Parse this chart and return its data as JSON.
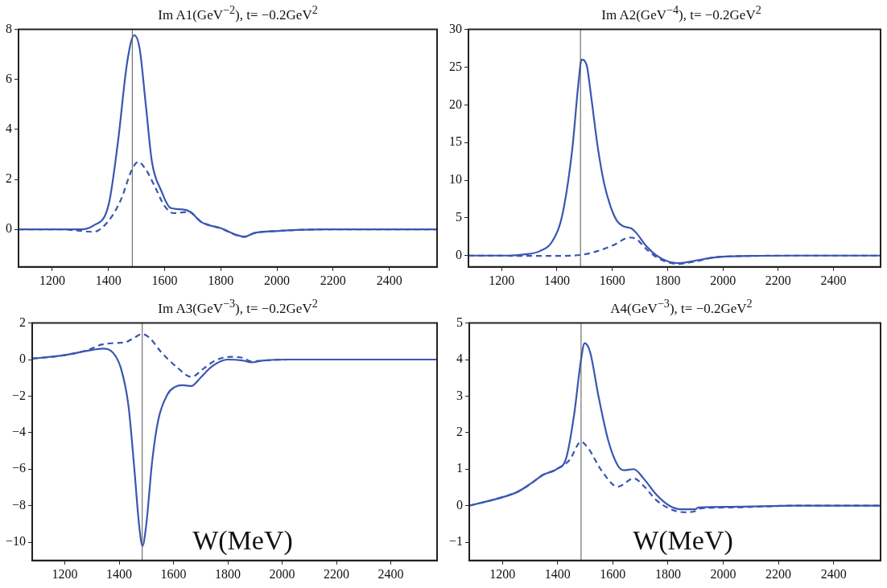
{
  "chart_data": [
    {
      "type": "line",
      "title": "Im A1(GeV$^{−2}$), t= −0.2GeV$^{2}$",
      "x": [
        1080,
        1236,
        1291,
        1346,
        1401,
        1434,
        1467,
        1492,
        1511,
        1533,
        1555,
        1588,
        1621,
        1665,
        1693,
        1731,
        1797,
        1885,
        1918,
        2006,
        2171,
        2570
      ],
      "xlim": [
        1080,
        2570
      ],
      "xticks": [
        1200,
        1400,
        1600,
        1800,
        2000,
        2200,
        2400
      ],
      "ylim": [
        -1.5,
        8
      ],
      "yticks": [
        0,
        2,
        4,
        6,
        8
      ],
      "grid": false,
      "legend": false,
      "series": [
        {
          "color": "#3a56b0",
          "line_style": "solid",
          "values": [
            0,
            0,
            0,
            0.15,
            1.0,
            3.5,
            6.7,
            7.77,
            7.25,
            5.0,
            2.7,
            1.55,
            0.86,
            0.8,
            0.69,
            0.29,
            0.06,
            -0.29,
            -0.15,
            -0.06,
            0,
            0
          ]
        },
        {
          "color": "#3a56b0",
          "line_style": "dashed",
          "x": [
            1080,
            1236,
            1291,
            1346,
            1401,
            1445,
            1484,
            1506,
            1533,
            1566,
            1599,
            1632,
            1687,
            1731,
            1797,
            1885,
            1918,
            2006,
            2171,
            2570
          ],
          "values": [
            0,
            0,
            -0.05,
            -0.1,
            0.35,
            1.2,
            2.4,
            2.7,
            2.4,
            1.7,
            0.95,
            0.65,
            0.7,
            0.3,
            0.05,
            -0.3,
            -0.15,
            -0.06,
            0,
            0
          ]
        }
      ],
      "ref_lines": [
        {
          "axis": "x",
          "value": 1485,
          "color": "#555555"
        }
      ]
    },
    {
      "type": "line",
      "title": "Im A2(GeV$^{−4}$), t= −0.2GeV$^{2}$",
      "x": [
        1080,
        1222,
        1280,
        1338,
        1385,
        1420,
        1455,
        1478,
        1489,
        1507,
        1524,
        1547,
        1571,
        1594,
        1617,
        1640,
        1669,
        1687,
        1722,
        1757,
        1803,
        1844,
        1896,
        1978,
        2094,
        2268,
        2570
      ],
      "xlim": [
        1080,
        2570
      ],
      "xticks": [
        1200,
        1400,
        1600,
        1800,
        2000,
        2200,
        2400
      ],
      "ylim": [
        -1.5,
        30
      ],
      "yticks": [
        0,
        5,
        10,
        15,
        20,
        25,
        30
      ],
      "grid": false,
      "legend": false,
      "series": [
        {
          "color": "#3a56b0",
          "line_style": "solid",
          "values": [
            0,
            0,
            0.15,
            0.6,
            2,
            5.5,
            14,
            23,
            26,
            25.3,
            21,
            14.5,
            9.5,
            6.5,
            4.6,
            3.9,
            3.6,
            3.0,
            1.3,
            0.1,
            -0.8,
            -1.0,
            -0.7,
            -0.2,
            -0.05,
            0,
            0
          ]
        },
        {
          "color": "#3a56b0",
          "line_style": "dashed",
          "x": [
            1080,
            1396,
            1489,
            1547,
            1605,
            1663,
            1687,
            1722,
            1768,
            1838,
            1896,
            1978,
            2094,
            2268,
            2570
          ],
          "values": [
            0,
            -0.05,
            0.1,
            0.6,
            1.4,
            2.4,
            2.2,
            0.9,
            -0.4,
            -1.1,
            -0.8,
            -0.2,
            -0.05,
            0,
            0
          ]
        }
      ],
      "ref_lines": [
        {
          "axis": "x",
          "value": 1485,
          "color": "#555555"
        }
      ]
    },
    {
      "type": "line",
      "title": "Im A3(GeV$^{−3}$), t= −0.2GeV$^{2}$",
      "xlabel": "W(MeV)",
      "x": [
        1080,
        1202,
        1290,
        1340,
        1379,
        1407,
        1434,
        1456,
        1473,
        1486,
        1500,
        1522,
        1544,
        1578,
        1605,
        1633,
        1666,
        1699,
        1744,
        1799,
        1854,
        1887,
        1932,
        2020,
        2570
      ],
      "xlim": [
        1080,
        2570
      ],
      "xticks": [
        1200,
        1400,
        1600,
        1800,
        2000,
        2200,
        2400
      ],
      "ylim": [
        -11,
        2
      ],
      "yticks": [
        {
          "value": -10,
          "label": "−10"
        },
        {
          "value": -8,
          "label": "−8"
        },
        {
          "value": -6,
          "label": "−6"
        },
        {
          "value": -4,
          "label": "−4"
        },
        {
          "value": -2,
          "label": "−2"
        },
        0,
        2
      ],
      "grid": false,
      "legend": false,
      "series": [
        {
          "color": "#3a56b0",
          "line_style": "solid",
          "values": [
            0.05,
            0.25,
            0.5,
            0.6,
            0.35,
            -0.5,
            -2.5,
            -6,
            -9,
            -10.2,
            -9,
            -5.5,
            -3.3,
            -1.9,
            -1.5,
            -1.4,
            -1.45,
            -1.0,
            -0.35,
            0,
            -0.05,
            -0.15,
            -0.05,
            0,
            0
          ]
        },
        {
          "color": "#3a56b0",
          "line_style": "dashed",
          "x": [
            1080,
            1202,
            1290,
            1335,
            1379,
            1423,
            1456,
            1484,
            1511,
            1555,
            1611,
            1666,
            1710,
            1754,
            1810,
            1854,
            1887,
            1932,
            2020,
            2570
          ],
          "values": [
            0.05,
            0.25,
            0.55,
            0.82,
            0.9,
            0.95,
            1.2,
            1.4,
            1.2,
            0.4,
            -0.4,
            -0.95,
            -0.5,
            -0.05,
            0.15,
            0.1,
            -0.1,
            -0.05,
            0,
            0
          ]
        }
      ],
      "ref_lines": [
        {
          "axis": "x",
          "value": 1485,
          "color": "#555555"
        }
      ]
    },
    {
      "type": "line",
      "title": "A4(GeV$^{−3}$), t= −0.2GeV$^{2}$",
      "xlabel": "W(MeV)",
      "x": [
        1080,
        1185,
        1255,
        1302,
        1349,
        1396,
        1431,
        1460,
        1483,
        1498,
        1518,
        1548,
        1583,
        1618,
        1641,
        1676,
        1711,
        1758,
        1805,
        1852,
        1898,
        1910,
        2027,
        2261,
        2570
      ],
      "xlim": [
        1080,
        2570
      ],
      "xticks": [
        1200,
        1400,
        1600,
        1800,
        2000,
        2200,
        2400
      ],
      "ylim": [
        -1.5,
        5
      ],
      "yticks": [
        {
          "value": -1,
          "label": "−1"
        },
        0,
        1,
        2,
        3,
        4,
        5
      ],
      "grid": false,
      "legend": false,
      "series": [
        {
          "color": "#3a56b0",
          "line_style": "solid",
          "values": [
            0,
            0.2,
            0.38,
            0.6,
            0.85,
            1.0,
            1.3,
            2.5,
            3.9,
            4.45,
            4.2,
            3.0,
            1.8,
            1.1,
            0.97,
            1.0,
            0.75,
            0.3,
            0.0,
            -0.1,
            -0.1,
            -0.05,
            -0.03,
            0,
            0
          ]
        },
        {
          "color": "#3a56b0",
          "line_style": "dashed",
          "x": [
            1080,
            1185,
            1255,
            1302,
            1349,
            1396,
            1443,
            1485,
            1513,
            1560,
            1618,
            1676,
            1711,
            1758,
            1817,
            1863,
            1898,
            1921,
            2027,
            2261,
            2570
          ],
          "values": [
            0,
            0.2,
            0.38,
            0.6,
            0.85,
            1.0,
            1.25,
            1.75,
            1.55,
            0.95,
            0.52,
            0.75,
            0.55,
            0.15,
            -0.12,
            -0.18,
            -0.15,
            -0.07,
            -0.05,
            0,
            0
          ]
        }
      ],
      "ref_lines": [
        {
          "axis": "x",
          "value": 1485,
          "color": "#555555"
        }
      ]
    }
  ]
}
